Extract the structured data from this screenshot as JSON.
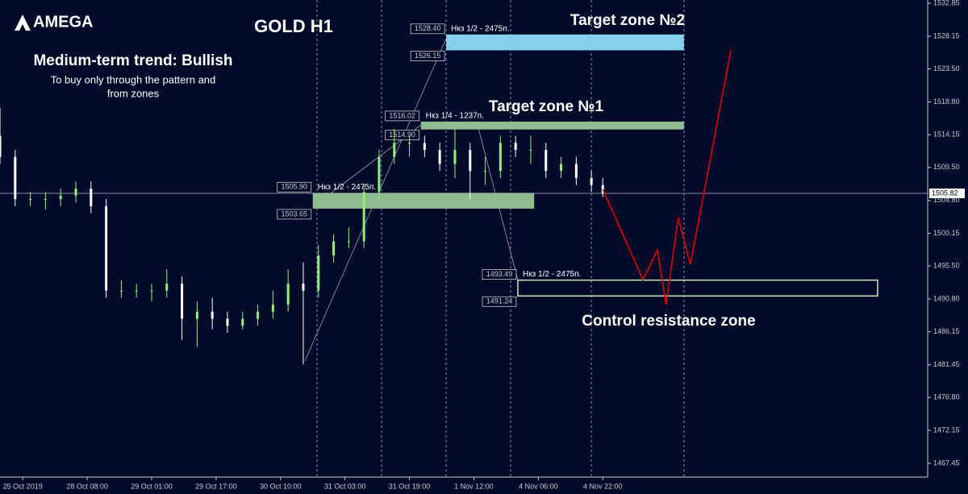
{
  "brand": "AMEGA",
  "chart_data": {
    "type": "candlestick",
    "title": "GOLD H1",
    "subtitle": "Medium-term trend: Bullish",
    "notes": [
      "To buy only through the pattern  and",
      "from zones"
    ],
    "zone_titles": [
      "Target zone №2",
      "Target zone №1",
      "Control resistance zone"
    ],
    "up_color": "#8ef07a",
    "down_color": "#ffffff",
    "xlim": [
      0,
      244.7
    ],
    "ylim": [
      1465.5,
      1533.3
    ],
    "yticks": [
      1532.85,
      {
        "value": 1528.15,
        "label": "1528.15"
      },
      {
        "value": 1523.5,
        "label": "1523.50"
      },
      {
        "value": 1518.8,
        "label": "1518.80"
      },
      1514.15,
      {
        "value": 1509.5,
        "label": "1509.50"
      },
      {
        "value": 1504.8,
        "label": "1504.80"
      },
      1500.15,
      {
        "value": 1495.5,
        "label": "1495.50"
      },
      {
        "value": 1490.8,
        "label": "1490.80"
      },
      1486.15,
      1481.45,
      {
        "value": 1476.8,
        "label": "1476.80"
      },
      1472.15,
      1467.45
    ],
    "xticks": [
      {
        "value": 6,
        "label": "25 Oct 2019"
      },
      {
        "value": 23,
        "label": "28 Oct 08:00"
      },
      {
        "value": 40,
        "label": "29 Oct 01:00"
      },
      {
        "value": 57,
        "label": "29 Oct 17:00"
      },
      {
        "value": 74,
        "label": "30 Oct 10:00"
      },
      {
        "value": 91,
        "label": "31 Oct 03:00"
      },
      {
        "value": 108,
        "label": "31 Oct 19:00"
      },
      {
        "value": 125,
        "label": "1 Nov 12:00"
      },
      {
        "value": 142,
        "label": "4 Nov 06:00"
      },
      {
        "value": 159,
        "label": "4 Nov 22:00"
      }
    ],
    "x": [
      0,
      4,
      8,
      12,
      16,
      20,
      24,
      28,
      32,
      36,
      40,
      44,
      48,
      52,
      56,
      60,
      64,
      68,
      72,
      76,
      80,
      84,
      88,
      92,
      96,
      100,
      104,
      108,
      112,
      116,
      120,
      124,
      128,
      132,
      136,
      140,
      144,
      148,
      152,
      156,
      159
    ],
    "open": [
      1514,
      1511,
      1505,
      1505,
      1505,
      1505.5,
      1506.5,
      1504,
      1492,
      1492,
      1492,
      1492,
      1493,
      1488,
      1489,
      1488,
      1487,
      1488,
      1489,
      1490,
      1493,
      1492,
      1497,
      1499,
      1499,
      1506,
      1511,
      1513,
      1513,
      1512,
      1510,
      1512,
      1509,
      1509,
      1513,
      1512,
      1512,
      1509,
      1510,
      1508,
      1507
    ],
    "high": [
      1518,
      1512,
      1506,
      1506,
      1506.5,
      1507.5,
      1507.5,
      1505,
      1493.5,
      1493,
      1493,
      1495,
      1494,
      1490.5,
      1491,
      1489,
      1489,
      1490,
      1492,
      1495,
      1496,
      1498.5,
      1500,
      1501,
      1507,
      1512,
      1515,
      1514,
      1514,
      1513,
      1515,
      1513,
      1511,
      1514,
      1514,
      1514,
      1513,
      1511,
      1511,
      1509,
      1508
    ],
    "low": [
      1510,
      1504,
      1504,
      1503.5,
      1504,
      1504.5,
      1503,
      1491,
      1491,
      1491,
      1490.5,
      1491,
      1485,
      1484,
      1486.5,
      1486,
      1486.5,
      1487,
      1488,
      1489,
      1481.5,
      1491,
      1496,
      1498,
      1498,
      1505,
      1510,
      1511,
      1511,
      1509,
      1508,
      1505,
      1507,
      1508,
      1511,
      1510,
      1508,
      1508,
      1507,
      1506,
      1505.3
    ],
    "close": [
      1511,
      1505,
      1505,
      1505,
      1505.5,
      1506.5,
      1504,
      1492,
      1492,
      1492,
      1492,
      1493,
      1488,
      1489,
      1488,
      1487,
      1488,
      1489,
      1490,
      1493,
      1492,
      1497,
      1499,
      1499,
      1506,
      1511,
      1513,
      1513,
      1512,
      1510,
      1512,
      1509,
      1509,
      1513,
      1512,
      1512,
      1509,
      1510,
      1508,
      1507,
      1505.8
    ],
    "current_price": 1505.82,
    "zones": [
      {
        "label": "Нкз 1/2 - 2475п.",
        "x_start": 117.7,
        "x_end": 180.4,
        "top": {
          "value": 1528.4,
          "label": "1528.40"
        },
        "bottom": 1526.15,
        "color": "#87ceeb",
        "filled": true
      },
      {
        "label": "Нкз 1/4 - 1237п.",
        "x_start": 111,
        "x_end": 180.4,
        "top": 1516.02,
        "bottom": {
          "value": 1514.9,
          "label": "1514.90"
        },
        "color": "#8fbc8f",
        "filled": true
      },
      {
        "label": "Нкз 1/2 - 2475п.",
        "x_start": 82.5,
        "x_end": 140.9,
        "top": {
          "value": 1505.9,
          "label": "1505.90"
        },
        "bottom": 1503.65,
        "color": "#8fbc8f",
        "filled": true
      },
      {
        "label": "Нкз 1/2 - 2475п.",
        "x_start": 136.6,
        "x_end": 231.5,
        "top": 1493.49,
        "bottom": 1491.24,
        "color": "#c8e6c0",
        "filled": false
      }
    ],
    "forecast": {
      "color": "#e00000",
      "x": [
        159,
        169.6,
        173.4,
        175.7,
        178.9,
        182.1,
        192.8
      ],
      "values": [
        1506.4,
        1493.55,
        1497.8,
        1490,
        1502.4,
        1495.7,
        1526.2
      ]
    }
  }
}
